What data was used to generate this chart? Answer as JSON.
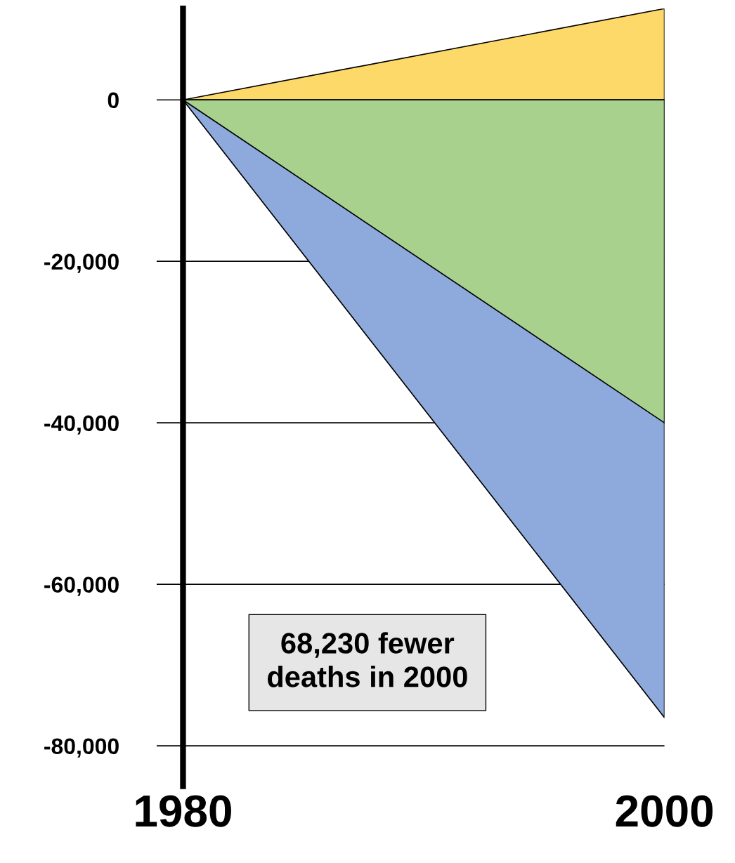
{
  "chart_data": {
    "type": "area",
    "x": [
      1980,
      2000
    ],
    "series": [
      {
        "color": "#fdd96a",
        "values": [
          0,
          11300
        ]
      },
      {
        "color": "#8eaadc",
        "values": [
          0,
          -76500
        ]
      },
      {
        "color": "#a8d18d",
        "values": [
          0,
          -40000
        ]
      }
    ],
    "xlim": [
      1980,
      2000
    ],
    "xticks": [
      1980,
      2000
    ],
    "ylim": [
      -85000,
      11300
    ],
    "yticks": [
      {
        "value": 0,
        "label": "0"
      },
      {
        "value": -20000,
        "label": "-20,000"
      },
      {
        "value": -40000,
        "label": "-40,000"
      },
      {
        "value": -60000,
        "label": "-60,000"
      },
      {
        "value": -80000,
        "label": "-80,000"
      }
    ],
    "grid": "y",
    "annotations": [
      "68,230 fewer\ndeaths in 2000"
    ]
  }
}
